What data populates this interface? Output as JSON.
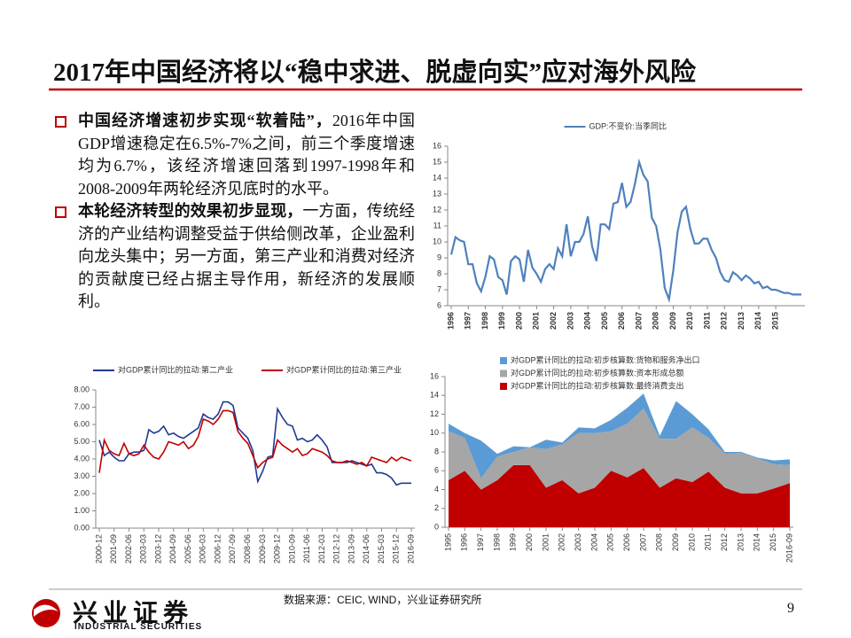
{
  "title": "2017年中国经济将以“稳中求进、脱虚向实”应对海外风险",
  "bullets": [
    {
      "lead": "中国经济增速初步实现“软着陆”，",
      "text": "2016年中国GDP增速稳定在6.5%-7%之间，前三个季度增速均为6.7%，该经济增速回落到1997-1998年和2008-2009年两轮经济见底时的水平。"
    },
    {
      "lead": "本轮经济转型的效果初步显现，",
      "text": "一方面，传统经济的产业结构调整受益于供给侧改革，企业盈利向龙头集中；另一方面，第三产业和消费对经济的贡献度已经占据主导作用，新经济的发展顺利。"
    }
  ],
  "source": "数据来源：CEIC, WIND，兴业证券研究所",
  "page_number": "9",
  "brand": {
    "name": "兴业证券",
    "english": "INDUSTRIAL SECURITIES"
  },
  "chart_data": [
    {
      "type": "line",
      "legend": "top",
      "categories": [
        "1996",
        null,
        null,
        null,
        "1997",
        null,
        null,
        null,
        "1998",
        null,
        null,
        null,
        "1999",
        null,
        null,
        null,
        "2000",
        null,
        null,
        null,
        "2001",
        null,
        null,
        null,
        "2002",
        null,
        null,
        null,
        "2003",
        null,
        null,
        null,
        "2004",
        null,
        null,
        null,
        "2005",
        null,
        null,
        null,
        "2006",
        null,
        null,
        null,
        "2007",
        null,
        null,
        null,
        "2008",
        null,
        null,
        null,
        "2009",
        null,
        null,
        null,
        "2010",
        null,
        null,
        null,
        "2011",
        null,
        null,
        null,
        "2012",
        null,
        null,
        null,
        "2013",
        null,
        null,
        null,
        "2014",
        null,
        null,
        null,
        "2015",
        null,
        null,
        null,
        null,
        null,
        null
      ],
      "series": [
        {
          "name": "GDP:不变价:当季同比",
          "color": "#4f81bd",
          "values": [
            9.2,
            10.3,
            10.1,
            10.0,
            8.6,
            8.6,
            7.4,
            6.9,
            7.8,
            9.1,
            8.9,
            7.8,
            7.6,
            6.7,
            8.8,
            9.1,
            8.9,
            7.5,
            9.5,
            8.4,
            8.0,
            7.5,
            8.3,
            8.6,
            8.3,
            9.6,
            9.1,
            11.1,
            9.1,
            10.0,
            10.0,
            10.5,
            11.6,
            9.7,
            8.8,
            11.1,
            11.1,
            10.8,
            12.4,
            12.5,
            13.7,
            12.2,
            12.5,
            13.6,
            15.0,
            14.2,
            13.8,
            11.5,
            11.0,
            9.5,
            7.1,
            6.4,
            8.2,
            10.6,
            11.9,
            12.2,
            10.8,
            9.9,
            9.9,
            10.2,
            10.2,
            9.5,
            9.0,
            8.1,
            7.6,
            7.5,
            8.1,
            7.9,
            7.6,
            7.9,
            7.7,
            7.4,
            7.5,
            7.1,
            7.2,
            7.0,
            7.0,
            6.9,
            6.8,
            6.8,
            6.7,
            6.7,
            6.7
          ]
        }
      ],
      "ylim": [
        6,
        16
      ],
      "yticks": [
        6,
        7,
        8,
        9,
        10,
        11,
        12,
        13,
        14,
        15,
        16
      ]
    },
    {
      "type": "line",
      "legend": "top",
      "categories": [
        "2000-12",
        null,
        null,
        "2001-09",
        null,
        null,
        "2002-06",
        null,
        null,
        "2003-03",
        null,
        null,
        "2003-12",
        null,
        null,
        "2004-09",
        null,
        null,
        "2005-06",
        null,
        null,
        "2006-03",
        null,
        null,
        "2006-12",
        null,
        null,
        "2007-09",
        null,
        null,
        "2008-06",
        null,
        null,
        "2009-03",
        null,
        null,
        "2009-12",
        null,
        null,
        "2010-09",
        null,
        null,
        "2011-06",
        null,
        null,
        "2012-03",
        null,
        null,
        "2012-12",
        null,
        null,
        "2013-09",
        null,
        null,
        "2014-06",
        null,
        null,
        "2015-03",
        null,
        null,
        "2015-12",
        null,
        null,
        "2016-09"
      ],
      "series": [
        {
          "name": "对GDP累计同比的拉动:第二产业",
          "color": "#1f3a93",
          "values": [
            5.1,
            4.2,
            4.4,
            4.1,
            3.9,
            3.9,
            4.3,
            4.4,
            4.4,
            4.5,
            5.7,
            5.5,
            5.6,
            5.9,
            5.4,
            5.5,
            5.3,
            5.2,
            5.4,
            5.6,
            5.8,
            6.6,
            6.4,
            6.3,
            6.6,
            7.3,
            7.3,
            7.1,
            5.8,
            5.5,
            5.2,
            4.5,
            2.7,
            3.3,
            4.1,
            4.2,
            6.9,
            6.4,
            6.0,
            5.9,
            5.1,
            5.2,
            5.0,
            5.1,
            5.4,
            5.1,
            4.7,
            3.8,
            3.8,
            3.8,
            3.8,
            3.9,
            3.8,
            3.7,
            3.6,
            3.7,
            3.2,
            3.2,
            3.1,
            2.9,
            2.5,
            2.6,
            2.6,
            2.6
          ]
        },
        {
          "name": "对GDP累计同比的拉动:第三产业",
          "color": "#c00000",
          "values": [
            3.2,
            5.1,
            4.5,
            4.3,
            4.2,
            4.9,
            4.3,
            4.2,
            4.3,
            4.8,
            4.4,
            4.1,
            4.0,
            4.4,
            5.0,
            4.9,
            4.8,
            5.0,
            4.6,
            4.8,
            5.3,
            6.3,
            6.2,
            6.0,
            6.3,
            6.8,
            6.8,
            6.7,
            5.6,
            5.2,
            4.9,
            4.2,
            3.5,
            3.8,
            4.0,
            4.1,
            5.1,
            4.8,
            4.6,
            4.4,
            4.6,
            4.2,
            4.3,
            4.6,
            4.5,
            4.4,
            4.2,
            3.9,
            3.8,
            3.8,
            3.9,
            3.8,
            3.7,
            3.8,
            3.6,
            4.1,
            4.0,
            3.9,
            3.8,
            4.1,
            3.9,
            4.1,
            4.0,
            3.9
          ]
        }
      ],
      "ylim": [
        0,
        8
      ],
      "yticks": [
        {
          "value": 0,
          "label": "0.00"
        },
        {
          "value": 1,
          "label": "1.00"
        },
        {
          "value": 2,
          "label": "2.00"
        },
        {
          "value": 3,
          "label": "3.00"
        },
        {
          "value": 4,
          "label": "4.00"
        },
        {
          "value": 5,
          "label": "5.00"
        },
        {
          "value": 6,
          "label": "6.00"
        },
        {
          "value": 7,
          "label": "7.00"
        },
        {
          "value": 8,
          "label": "8.00"
        }
      ]
    },
    {
      "type": "area",
      "legend": "top-left",
      "categories": [
        "1995",
        "1996",
        "1997",
        "1998",
        "1999",
        "2000",
        "2001",
        "2002",
        "2003",
        "2004",
        "2005",
        "2006",
        "2007",
        "2008",
        "2009",
        "2010",
        "2011",
        "2012",
        "2013",
        "2014",
        "2015",
        "2016-09"
      ],
      "series": [
        {
          "name": "对GDP累计同比的拉动:初步核算数:最终消费支出",
          "color": "#c00000",
          "values": [
            5.0,
            6.0,
            4.0,
            5.0,
            6.6,
            6.6,
            4.2,
            5.0,
            3.6,
            4.2,
            6.0,
            5.3,
            6.3,
            4.2,
            5.2,
            4.8,
            5.9,
            4.2,
            3.6,
            3.6,
            4.1,
            4.7
          ]
        },
        {
          "name": "对GDP累计同比的拉动:初步核算数:资本形成总额",
          "color": "#a6a6a6",
          "values": [
            5.2,
            3.5,
            1.2,
            2.5,
            1.4,
            1.9,
            4.1,
            3.8,
            6.4,
            5.8,
            4.2,
            5.7,
            6.3,
            5.2,
            4.2,
            5.8,
            3.6,
            3.6,
            4.3,
            3.7,
            2.6,
            1.9
          ]
        },
        {
          "name": "对GDP累计同比的拉动:初步核算数:货物和服务净出口",
          "color": "#5b9bd5",
          "values": [
            0.8,
            0.5,
            4.0,
            0.3,
            0.6,
            0.0,
            1.0,
            0.2,
            0.6,
            0.5,
            1.2,
            1.7,
            1.6,
            0.3,
            4.0,
            1.4,
            0.9,
            0.2,
            0.1,
            0.1,
            0.4,
            0.6
          ]
        }
      ],
      "ylim": [
        0,
        16
      ],
      "yticks": [
        0,
        2,
        4,
        6,
        8,
        10,
        12,
        14,
        16
      ]
    }
  ]
}
